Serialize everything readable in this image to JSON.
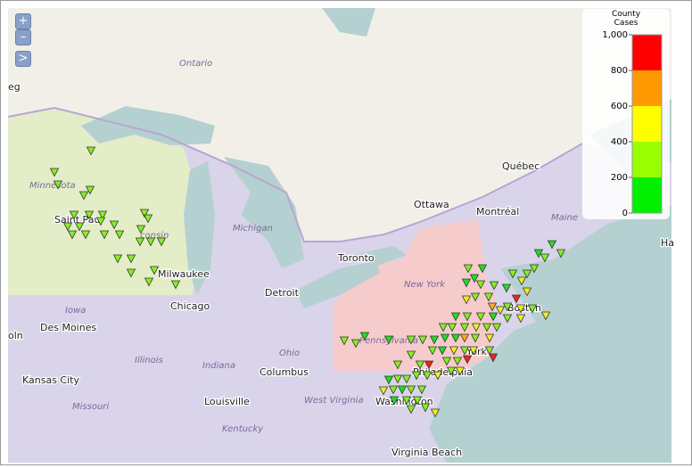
{
  "map": {
    "controls": [
      "+",
      "–",
      ">"
    ],
    "cities": [
      "eg",
      "Saint Paul",
      "Milwaukee",
      "Chicago",
      "Detroit",
      "Toronto",
      "Ottawa",
      "Montréal",
      "Québec",
      "Ha",
      "York",
      "Boston",
      "Philadelphia",
      "Columbus",
      "Des Moines",
      "oln",
      "Kansas City",
      "Louisville",
      "Washington",
      "Virginia Beach"
    ],
    "regions": [
      "Ontario",
      "Minnesota",
      "consin",
      "Michigan",
      "Maine",
      "New York",
      "Pennsylvania",
      "Ohio",
      "Indiana",
      "Illinois",
      "Iowa",
      "Missouri",
      "Kentucky",
      "West Virginia"
    ],
    "legend": {
      "title": "County Cases",
      "ticks": [
        0,
        200,
        400,
        600,
        800,
        {
          "value": 1000,
          "label": "1,000"
        }
      ],
      "colors": [
        "#00f000",
        "#99ff00",
        "#ffff00",
        "#ff9900",
        "#ff0000"
      ]
    }
  }
}
